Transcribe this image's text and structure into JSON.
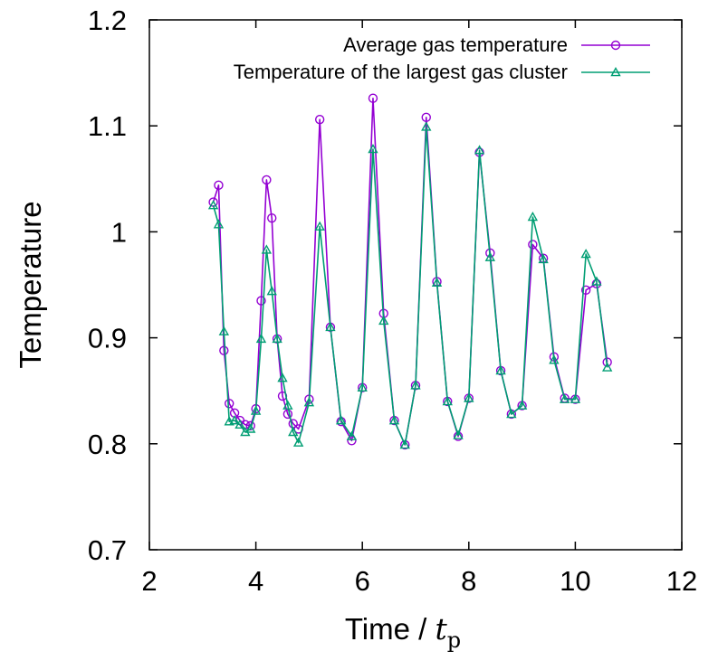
{
  "chart_data": {
    "type": "line",
    "title": "",
    "xlabel": "Time / ",
    "xlabel_var": "t",
    "xlabel_sub": "p",
    "ylabel": "Temperature",
    "xlim": [
      2,
      12
    ],
    "ylim": [
      0.7,
      1.2
    ],
    "xticks": [
      2,
      4,
      6,
      8,
      10,
      12
    ],
    "xtick_labels": [
      "2",
      "4",
      "6",
      "8",
      "10",
      "12"
    ],
    "yticks": [
      0.7,
      0.8,
      0.9,
      1.0,
      1.1,
      1.2
    ],
    "ytick_labels": [
      "0.7",
      "0.8",
      "0.9",
      "1",
      "1.1",
      "1.2"
    ],
    "grid": false,
    "legend_position": "top-right",
    "series": [
      {
        "name": "Average gas temperature",
        "color": "#9400d3",
        "marker": "circle",
        "x": [
          3.2,
          3.3,
          3.4,
          3.5,
          3.6,
          3.7,
          3.8,
          3.9,
          4.0,
          4.1,
          4.2,
          4.3,
          4.4,
          4.5,
          4.6,
          4.7,
          4.8,
          5.0,
          5.2,
          5.4,
          5.6,
          5.8,
          6.0,
          6.2,
          6.4,
          6.6,
          6.8,
          7.0,
          7.2,
          7.4,
          7.6,
          7.8,
          8.0,
          8.2,
          8.4,
          8.6,
          8.8,
          9.0,
          9.2,
          9.4,
          9.6,
          9.8,
          10.0,
          10.2,
          10.4,
          10.6
        ],
        "y": [
          1.028,
          1.044,
          0.888,
          0.838,
          0.829,
          0.822,
          0.818,
          0.817,
          0.833,
          0.935,
          1.049,
          1.013,
          0.899,
          0.845,
          0.828,
          0.819,
          0.814,
          0.842,
          1.106,
          0.91,
          0.821,
          0.803,
          0.853,
          1.126,
          0.923,
          0.822,
          0.799,
          0.855,
          1.108,
          0.953,
          0.84,
          0.807,
          0.843,
          1.075,
          0.98,
          0.869,
          0.828,
          0.836,
          0.988,
          0.975,
          0.882,
          0.843,
          0.842,
          0.945,
          0.951,
          0.877
        ]
      },
      {
        "name": "Temperature of the largest gas cluster",
        "color": "#009e73",
        "marker": "triangle",
        "x": [
          3.2,
          3.3,
          3.4,
          3.5,
          3.6,
          3.7,
          3.8,
          3.9,
          4.0,
          4.1,
          4.2,
          4.3,
          4.4,
          4.5,
          4.6,
          4.7,
          4.8,
          5.0,
          5.2,
          5.4,
          5.6,
          5.8,
          6.0,
          6.2,
          6.4,
          6.6,
          6.8,
          7.0,
          7.2,
          7.4,
          7.6,
          7.8,
          8.0,
          8.2,
          8.4,
          8.6,
          8.8,
          9.0,
          9.2,
          9.4,
          9.6,
          9.8,
          10.0,
          10.2,
          10.4,
          10.6
        ],
        "y": [
          1.025,
          1.007,
          0.906,
          0.821,
          0.822,
          0.818,
          0.811,
          0.814,
          0.831,
          0.899,
          0.983,
          0.944,
          0.899,
          0.862,
          0.836,
          0.811,
          0.801,
          0.839,
          1.005,
          0.91,
          0.822,
          0.807,
          0.853,
          1.078,
          0.916,
          0.822,
          0.799,
          0.855,
          1.099,
          0.952,
          0.84,
          0.808,
          0.843,
          1.077,
          0.976,
          0.869,
          0.828,
          0.836,
          1.014,
          0.974,
          0.879,
          0.842,
          0.842,
          0.979,
          0.953,
          0.872
        ]
      }
    ]
  }
}
